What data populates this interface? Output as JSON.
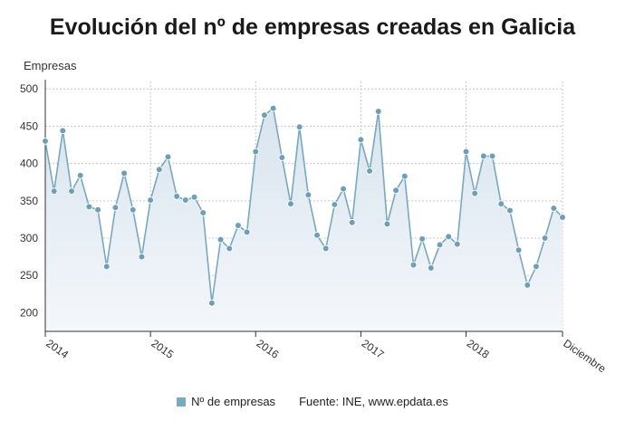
{
  "chart_data": {
    "type": "area",
    "title": "Evolución del nº de empresas creadas en Galicia",
    "ylabel": "Empresas",
    "xlabel": "",
    "ylim": [
      175,
      510
    ],
    "y_ticks": [
      200,
      250,
      300,
      350,
      400,
      450,
      500
    ],
    "x_tick_labels": [
      "2014",
      "2015",
      "2016",
      "2017",
      "2018",
      "Diciembre"
    ],
    "x_tick_indices": [
      0,
      12,
      24,
      36,
      48,
      59
    ],
    "grid": true,
    "legend_position": "bottom",
    "series": [
      {
        "name": "Nº de empresas",
        "color": "#7aa8bd",
        "x": [
          "2014-01",
          "2014-02",
          "2014-03",
          "2014-04",
          "2014-05",
          "2014-06",
          "2014-07",
          "2014-08",
          "2014-09",
          "2014-10",
          "2014-11",
          "2014-12",
          "2015-01",
          "2015-02",
          "2015-03",
          "2015-04",
          "2015-05",
          "2015-06",
          "2015-07",
          "2015-08",
          "2015-09",
          "2015-10",
          "2015-11",
          "2015-12",
          "2016-01",
          "2016-02",
          "2016-03",
          "2016-04",
          "2016-05",
          "2016-06",
          "2016-07",
          "2016-08",
          "2016-09",
          "2016-10",
          "2016-11",
          "2016-12",
          "2017-01",
          "2017-02",
          "2017-03",
          "2017-04",
          "2017-05",
          "2017-06",
          "2017-07",
          "2017-08",
          "2017-09",
          "2017-10",
          "2017-11",
          "2017-12",
          "2018-01",
          "2018-02",
          "2018-03",
          "2018-04",
          "2018-05",
          "2018-06",
          "2018-07",
          "2018-08",
          "2018-09",
          "2018-10",
          "2018-11",
          "2018-12"
        ],
        "values": [
          430,
          363,
          444,
          363,
          384,
          342,
          338,
          262,
          341,
          387,
          338,
          275,
          351,
          392,
          409,
          356,
          351,
          355,
          334,
          213,
          298,
          286,
          317,
          308,
          416,
          465,
          474,
          408,
          346,
          449,
          358,
          304,
          286,
          345,
          366,
          321,
          432,
          390,
          470,
          319,
          364,
          383,
          264,
          299,
          260,
          291,
          302,
          292,
          416,
          360,
          410,
          410,
          346,
          337,
          284,
          237,
          262,
          300,
          340,
          328
        ]
      }
    ]
  },
  "footer": {
    "legend_label": "Nº de empresas",
    "source": "Fuente: INE, www.epdata.es"
  },
  "colors": {
    "line": "#7aa8bd",
    "marker": "#6f9fb6",
    "area_top": "#dbe6ef",
    "area_bottom": "#f2f6fa"
  }
}
